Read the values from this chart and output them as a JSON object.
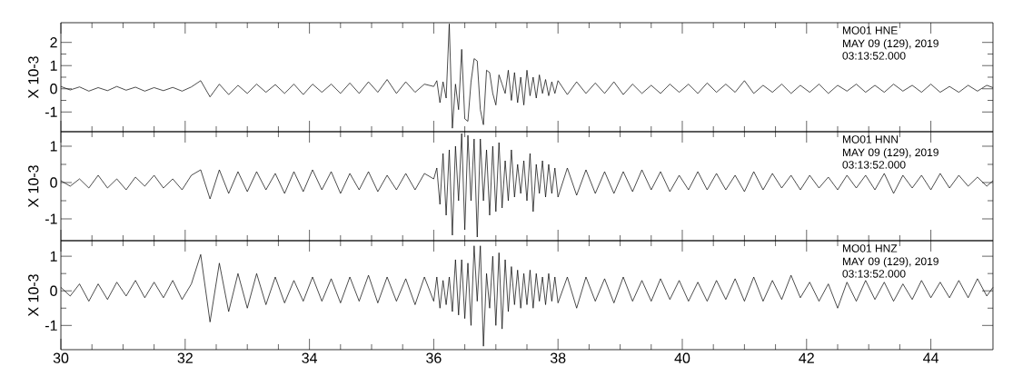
{
  "chart_data": [
    {
      "type": "line",
      "color": "#000000",
      "ylabel": "X 10-3",
      "xlim": [
        30,
        45
      ],
      "xticks": [
        30,
        32,
        34,
        36,
        38,
        40,
        42,
        44
      ],
      "ylim": [
        -1.85,
        2.85
      ],
      "yticks": [
        -1,
        0,
        1,
        2
      ],
      "tick_labels": "y",
      "annotations": [
        "MO01   HNE",
        "MAY 09 (129), 2019",
        "03:13:52.000"
      ],
      "x": [
        30,
        30.15,
        30.3,
        30.45,
        30.6,
        30.75,
        30.9,
        31.05,
        31.2,
        31.35,
        31.5,
        31.65,
        31.8,
        31.95,
        32.1,
        32.25,
        32.4,
        32.55,
        32.7,
        32.85,
        33,
        33.15,
        33.3,
        33.45,
        33.6,
        33.75,
        33.9,
        34.05,
        34.2,
        34.35,
        34.5,
        34.65,
        34.8,
        34.95,
        35.1,
        35.25,
        35.4,
        35.55,
        35.7,
        35.85,
        36,
        36.05,
        36.1,
        36.15,
        36.2,
        36.25,
        36.3,
        36.35,
        36.4,
        36.45,
        36.5,
        36.55,
        36.6,
        36.65,
        36.7,
        36.75,
        36.8,
        36.85,
        36.9,
        36.95,
        37,
        37.05,
        37.1,
        37.15,
        37.2,
        37.25,
        37.3,
        37.35,
        37.4,
        37.45,
        37.5,
        37.55,
        37.6,
        37.65,
        37.7,
        37.75,
        37.8,
        37.85,
        37.9,
        37.95,
        38,
        38.15,
        38.3,
        38.45,
        38.6,
        38.75,
        38.9,
        39.05,
        39.2,
        39.35,
        39.5,
        39.65,
        39.8,
        39.95,
        40.1,
        40.25,
        40.4,
        40.55,
        40.7,
        40.85,
        41,
        41.15,
        41.3,
        41.45,
        41.6,
        41.75,
        41.9,
        42.05,
        42.2,
        42.35,
        42.5,
        42.65,
        42.8,
        42.95,
        43.1,
        43.25,
        43.4,
        43.55,
        43.7,
        43.85,
        44,
        44.15,
        44.3,
        44.45,
        44.6,
        44.75,
        44.9,
        45
      ],
      "values": [
        0.1,
        -0.05,
        0.08,
        -0.1,
        0.05,
        -0.08,
        0.1,
        -0.06,
        0.07,
        -0.1,
        0.05,
        -0.08,
        0.06,
        -0.1,
        0.08,
        0.35,
        -0.35,
        0.2,
        -0.25,
        0.15,
        -0.2,
        0.2,
        -0.15,
        0.18,
        -0.2,
        0.2,
        -0.25,
        0.2,
        -0.15,
        0.2,
        -0.2,
        0.25,
        -0.2,
        0.3,
        -0.15,
        0.4,
        -0.2,
        0.3,
        -0.15,
        0.2,
        0.1,
        0.35,
        -0.6,
        0.3,
        -0.4,
        2.8,
        -1.7,
        0.2,
        -0.9,
        1.7,
        -1.3,
        -1.4,
        0.3,
        1.3,
        1.2,
        -0.9,
        -1.55,
        0.8,
        0.7,
        -0.2,
        -0.7,
        0.6,
        0.2,
        -0.2,
        0.8,
        -0.5,
        0.7,
        -0.6,
        0.5,
        -0.7,
        0.8,
        -0.3,
        0.5,
        -0.4,
        0.6,
        -0.2,
        0.4,
        -0.3,
        0.3,
        -0.2,
        0.35,
        -0.25,
        0.3,
        -0.2,
        0.25,
        -0.2,
        0.3,
        -0.25,
        0.2,
        -0.2,
        0.15,
        -0.2,
        0.2,
        -0.15,
        0.2,
        -0.2,
        0.25,
        -0.15,
        0.2,
        -0.15,
        0.35,
        -0.2,
        0.15,
        -0.15,
        0.2,
        -0.2,
        0.15,
        -0.15,
        0.2,
        -0.2,
        0.15,
        -0.1,
        0.2,
        -0.15,
        0.15,
        -0.15,
        0.2,
        -0.1,
        0.15,
        -0.15,
        0.2,
        -0.15,
        0.1,
        -0.15,
        0.15,
        -0.1,
        0.15,
        0.05
      ]
    },
    {
      "type": "line",
      "color": "#000000",
      "ylabel": "X 10-3",
      "xlim": [
        30,
        45
      ],
      "xticks": [
        30,
        32,
        34,
        36,
        38,
        40,
        42,
        44
      ],
      "ylim": [
        -1.6,
        1.4
      ],
      "yticks": [
        -1,
        0,
        1
      ],
      "tick_labels": "y",
      "annotations": [
        "MO01   HNN",
        "MAY 09 (129), 2019",
        "03:13:52.000"
      ],
      "x": [
        30,
        30.15,
        30.3,
        30.45,
        30.6,
        30.75,
        30.9,
        31.05,
        31.2,
        31.35,
        31.5,
        31.65,
        31.8,
        31.95,
        32.1,
        32.25,
        32.4,
        32.55,
        32.7,
        32.85,
        33,
        33.15,
        33.3,
        33.45,
        33.6,
        33.75,
        33.9,
        34.05,
        34.2,
        34.35,
        34.5,
        34.65,
        34.8,
        34.95,
        35.1,
        35.25,
        35.4,
        35.55,
        35.7,
        35.85,
        36,
        36.05,
        36.1,
        36.15,
        36.2,
        36.25,
        36.3,
        36.35,
        36.4,
        36.45,
        36.5,
        36.55,
        36.6,
        36.65,
        36.7,
        36.75,
        36.8,
        36.85,
        36.9,
        36.95,
        37,
        37.05,
        37.1,
        37.15,
        37.2,
        37.25,
        37.3,
        37.35,
        37.4,
        37.45,
        37.5,
        37.55,
        37.6,
        37.65,
        37.7,
        37.75,
        37.8,
        37.85,
        37.9,
        37.95,
        38,
        38.15,
        38.3,
        38.45,
        38.6,
        38.75,
        38.9,
        39.05,
        39.2,
        39.35,
        39.5,
        39.65,
        39.8,
        39.95,
        40.1,
        40.25,
        40.4,
        40.55,
        40.7,
        40.85,
        41,
        41.15,
        41.3,
        41.45,
        41.6,
        41.75,
        41.9,
        42.05,
        42.2,
        42.35,
        42.5,
        42.65,
        42.8,
        42.95,
        43.1,
        43.25,
        43.4,
        43.55,
        43.7,
        43.85,
        44,
        44.15,
        44.3,
        44.45,
        44.6,
        44.75,
        44.9,
        45
      ],
      "values": [
        0.05,
        -0.1,
        0.1,
        -0.15,
        0.2,
        -0.15,
        0.1,
        -0.2,
        0.15,
        -0.1,
        0.2,
        -0.15,
        0.1,
        -0.2,
        0.2,
        0.35,
        -0.45,
        0.35,
        -0.3,
        0.3,
        -0.25,
        0.3,
        -0.2,
        0.25,
        -0.3,
        0.3,
        -0.25,
        0.35,
        -0.2,
        0.3,
        -0.3,
        0.25,
        -0.2,
        0.3,
        -0.25,
        0.2,
        -0.2,
        0.25,
        -0.2,
        0.25,
        0.1,
        0.4,
        -0.6,
        0.8,
        -0.9,
        0.9,
        -1.45,
        1.0,
        -0.5,
        1.35,
        -1.3,
        1.3,
        -0.5,
        1.2,
        -1.5,
        1.2,
        -0.5,
        0.9,
        -0.9,
        1.0,
        -0.8,
        1.1,
        -0.7,
        0.6,
        -0.5,
        0.9,
        -0.4,
        0.5,
        -0.3,
        0.6,
        -0.5,
        0.8,
        -0.8,
        0.5,
        -0.3,
        0.6,
        -0.4,
        0.5,
        -0.3,
        0.4,
        -0.4,
        0.4,
        -0.35,
        0.35,
        -0.3,
        0.3,
        -0.3,
        0.3,
        -0.25,
        0.35,
        -0.2,
        0.3,
        -0.25,
        0.2,
        -0.2,
        0.3,
        -0.2,
        0.25,
        -0.2,
        0.2,
        -0.25,
        0.3,
        -0.2,
        0.25,
        -0.15,
        0.2,
        -0.2,
        0.2,
        -0.15,
        0.15,
        -0.2,
        0.2,
        -0.15,
        0.2,
        -0.2,
        0.25,
        -0.3,
        0.2,
        -0.15,
        0.2,
        -0.2,
        0.25,
        -0.15,
        0.2,
        -0.1,
        0.15,
        -0.1,
        0.05
      ]
    },
    {
      "type": "line",
      "color": "#000000",
      "ylabel": "X 10-3",
      "xlim": [
        30,
        45
      ],
      "xticks": [
        30,
        32,
        34,
        36,
        38,
        40,
        42,
        44
      ],
      "ylim": [
        -1.7,
        1.45
      ],
      "yticks": [
        -1,
        0,
        1
      ],
      "annotations": [
        "MO01   HNZ",
        "MAY 09 (129), 2019",
        "03:13:52.000"
      ],
      "x": [
        30,
        30.15,
        30.3,
        30.45,
        30.6,
        30.75,
        30.9,
        31.05,
        31.2,
        31.35,
        31.5,
        31.65,
        31.8,
        31.95,
        32.1,
        32.25,
        32.4,
        32.55,
        32.7,
        32.85,
        33,
        33.15,
        33.3,
        33.45,
        33.6,
        33.75,
        33.9,
        34.05,
        34.2,
        34.35,
        34.5,
        34.65,
        34.8,
        34.95,
        35.1,
        35.25,
        35.4,
        35.55,
        35.7,
        35.85,
        36,
        36.05,
        36.1,
        36.15,
        36.2,
        36.25,
        36.3,
        36.35,
        36.4,
        36.45,
        36.5,
        36.55,
        36.6,
        36.65,
        36.7,
        36.75,
        36.8,
        36.85,
        36.9,
        36.95,
        37,
        37.05,
        37.1,
        37.15,
        37.2,
        37.25,
        37.3,
        37.35,
        37.4,
        37.45,
        37.5,
        37.55,
        37.6,
        37.65,
        37.7,
        37.75,
        37.8,
        37.85,
        37.9,
        37.95,
        38,
        38.15,
        38.3,
        38.45,
        38.6,
        38.75,
        38.9,
        39.05,
        39.2,
        39.35,
        39.5,
        39.65,
        39.8,
        39.95,
        40.1,
        40.25,
        40.4,
        40.55,
        40.7,
        40.85,
        41,
        41.15,
        41.3,
        41.45,
        41.6,
        41.75,
        41.9,
        42.05,
        42.2,
        42.35,
        42.5,
        42.65,
        42.8,
        42.95,
        43.1,
        43.25,
        43.4,
        43.55,
        43.7,
        43.85,
        44,
        44.15,
        44.3,
        44.45,
        44.6,
        44.75,
        44.9,
        45
      ],
      "values": [
        0.1,
        -0.15,
        0.2,
        -0.3,
        0.2,
        -0.25,
        0.25,
        -0.15,
        0.3,
        -0.2,
        0.25,
        -0.2,
        0.3,
        -0.25,
        0.2,
        1.05,
        -0.9,
        0.8,
        -0.6,
        0.5,
        -0.5,
        0.5,
        -0.4,
        0.4,
        -0.35,
        0.3,
        -0.3,
        0.4,
        -0.3,
        0.35,
        -0.35,
        0.4,
        -0.3,
        0.45,
        -0.35,
        0.4,
        -0.3,
        0.35,
        -0.4,
        0.4,
        -0.3,
        0.4,
        -0.5,
        0.3,
        -0.4,
        0.4,
        -0.6,
        0.9,
        -0.7,
        0.9,
        -0.8,
        0.8,
        -1.0,
        1.3,
        -0.3,
        1.3,
        -1.6,
        0.5,
        -0.5,
        1.0,
        -1.0,
        1.1,
        -1.1,
        0.9,
        -0.6,
        0.7,
        -0.4,
        0.6,
        -0.5,
        0.5,
        -0.4,
        0.6,
        -0.5,
        0.5,
        -0.3,
        0.4,
        -0.4,
        0.5,
        -0.3,
        0.4,
        -0.35,
        0.4,
        -0.5,
        0.4,
        -0.3,
        0.35,
        -0.35,
        0.4,
        -0.3,
        0.3,
        -0.3,
        0.35,
        -0.25,
        0.3,
        -0.3,
        0.25,
        -0.3,
        0.3,
        -0.25,
        0.35,
        -0.3,
        0.4,
        -0.3,
        0.3,
        -0.25,
        0.45,
        -0.2,
        0.25,
        -0.3,
        0.2,
        -0.5,
        0.25,
        -0.3,
        0.3,
        -0.25,
        0.25,
        -0.3,
        0.2,
        -0.25,
        0.3,
        -0.2,
        0.25,
        -0.2,
        0.3,
        -0.2,
        0.35,
        -0.15,
        0.1
      ]
    }
  ]
}
